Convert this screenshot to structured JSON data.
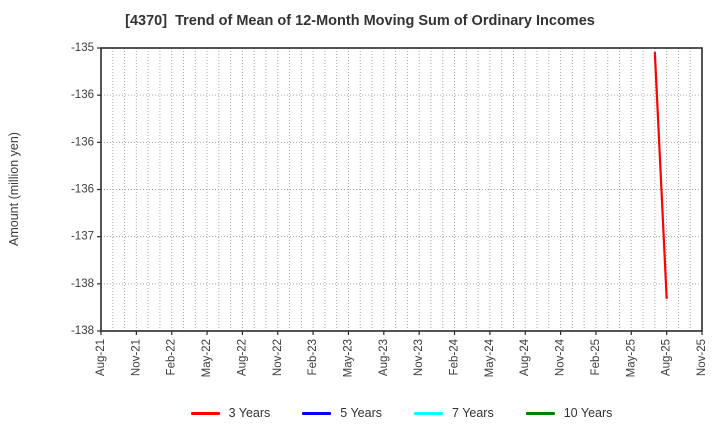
{
  "chart_data": {
    "type": "line",
    "title": "[4370]  Trend of Mean of 12-Month Moving Sum of Ordinary Incomes",
    "ylabel": "Amount (million yen)",
    "xlabel": "",
    "grid": true,
    "legend_position": "bottom",
    "ylim": [
      -138,
      -135
    ],
    "y_tick_values": [
      -135,
      -135.5,
      -136,
      -136.5,
      -137,
      -137.5,
      -138
    ],
    "y_tick_labels": [
      "-135",
      "-136",
      "-136",
      "-136",
      "-137",
      "-138",
      "-138"
    ],
    "x_tick_labels": [
      "Aug-21",
      "Nov-21",
      "Feb-22",
      "May-22",
      "Aug-22",
      "Nov-22",
      "Feb-23",
      "May-23",
      "Aug-23",
      "Nov-23",
      "Feb-24",
      "May-24",
      "Aug-24",
      "Nov-24",
      "Feb-25",
      "May-25",
      "Aug-25",
      "Nov-25"
    ],
    "months_per_tick": 3,
    "series": [
      {
        "name": "3 Years",
        "color": "#ff0000",
        "points": [
          {
            "x_label": "Jul-25",
            "x_index": 47,
            "y": -135.05
          },
          {
            "x_label": "Aug-25",
            "x_index": 48,
            "y": -137.65
          }
        ]
      },
      {
        "name": "5 Years",
        "color": "#0000ff",
        "points": []
      },
      {
        "name": "7 Years",
        "color": "#00ffff",
        "points": []
      },
      {
        "name": "10 Years",
        "color": "#007f00",
        "points": []
      }
    ],
    "style": {
      "frame_color": "#2b2b2b",
      "gridline_color": "#a6a6a6",
      "tick_text_color": "#3c3c3c"
    }
  }
}
